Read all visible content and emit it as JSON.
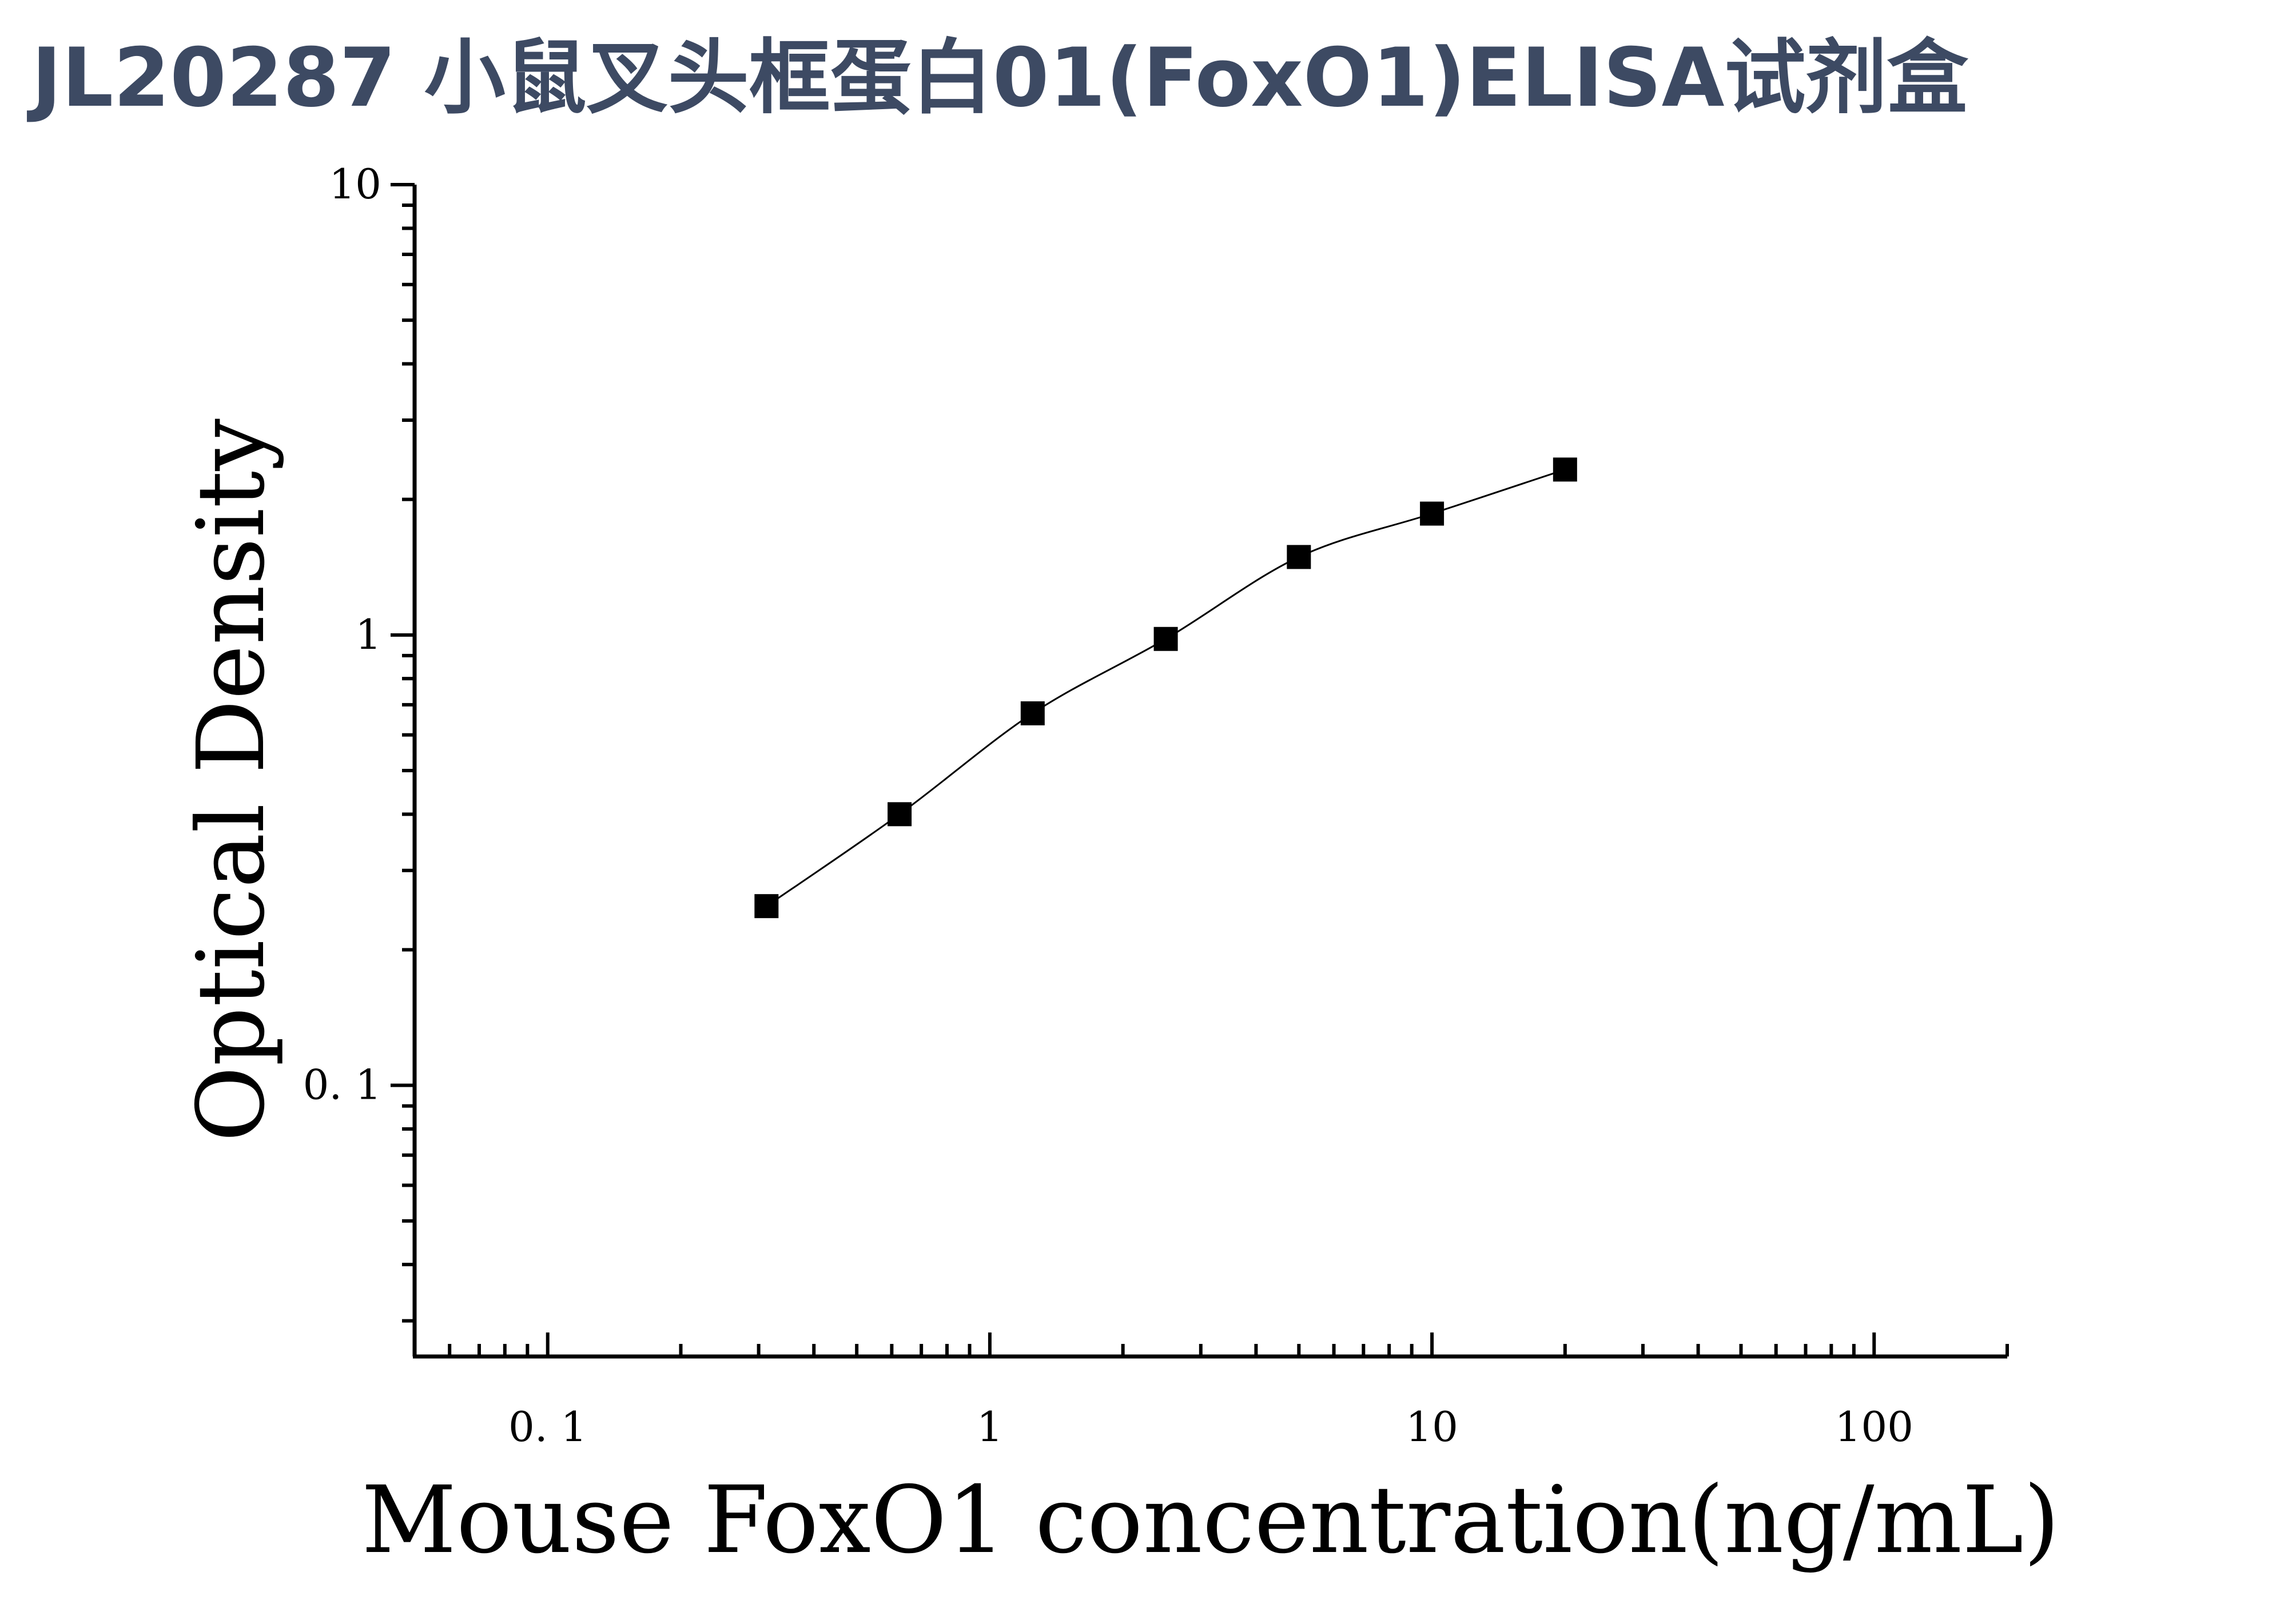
{
  "header": {
    "title": "JL20287 小鼠叉头框蛋白01(FoxO1)ELISA试剂盒"
  },
  "chart_data": {
    "type": "scatter",
    "title": "JL20287 小鼠叉头框蛋白01(FoxO1)ELISA试剂盒",
    "xlabel": "Mouse FoxO1 concentration(ng/mL)",
    "ylabel": "Optical Density",
    "xscale": "log",
    "yscale": "log",
    "xlim": [
      0.05,
      200
    ],
    "ylim": [
      0.025,
      10
    ],
    "x_ticks": [
      0.1,
      1,
      10,
      100
    ],
    "x_tick_labels": [
      "0. 1",
      "1",
      "10",
      "100"
    ],
    "y_ticks": [
      0.1,
      1,
      10
    ],
    "y_tick_labels": [
      "0. 1",
      "1",
      "10"
    ],
    "grid": false,
    "legend": "none",
    "marker": "square",
    "fit_line": true,
    "colors": {
      "title": "#3d4a63",
      "marks": "#000000",
      "axes": "#000000"
    },
    "series": [
      {
        "x": [
          0.3125,
          0.625,
          1.25,
          2.5,
          5,
          10,
          20
        ],
        "y": [
          0.25,
          0.4,
          0.67,
          0.98,
          1.49,
          1.86,
          2.33
        ]
      }
    ]
  }
}
